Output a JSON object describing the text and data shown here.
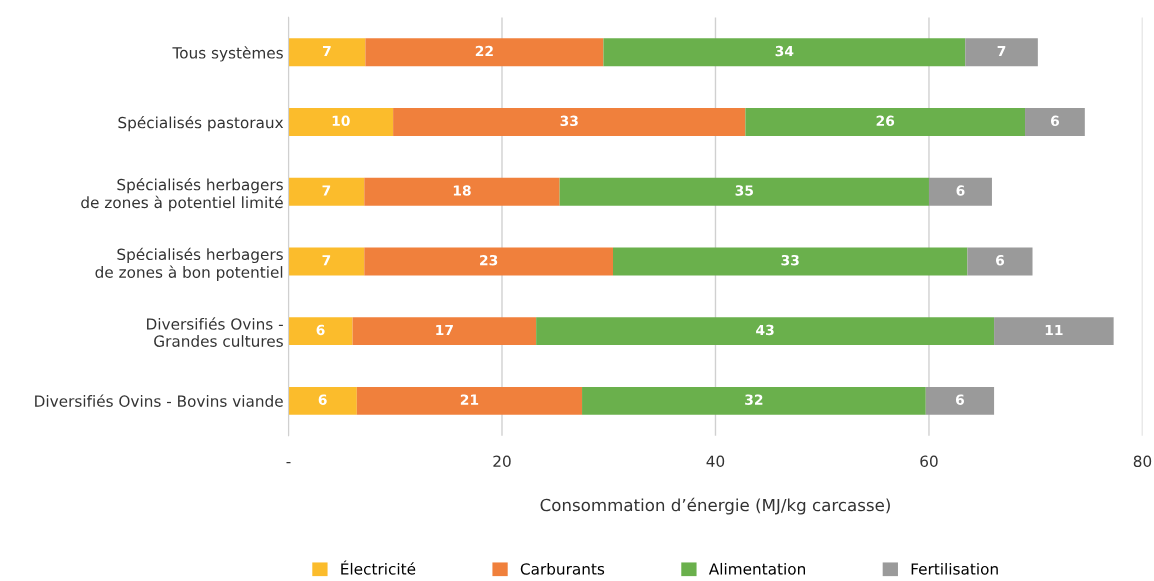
{
  "chart_data": {
    "type": "bar",
    "orientation": "horizontal",
    "stacked": true,
    "categories": [
      "Tous systèmes",
      "Spécialisés pastoraux",
      "Spécialisés herbagers\nde zones à potentiel limité",
      "Spécialisés herbagers\nde zones à bon potentiel",
      "Diversifiés Ovins -\nGrandes cultures",
      "Diversifiés Ovins - Bovins viande"
    ],
    "series": [
      {
        "name": "Électricité",
        "color": "#fbbc2c",
        "values": [
          7.2,
          9.8,
          7.1,
          7.1,
          6.0,
          6.4
        ],
        "value_labels": [
          "7",
          "10",
          "7",
          "7",
          "6",
          "6"
        ]
      },
      {
        "name": "Carburants",
        "color": "#f0803c",
        "values": [
          22.3,
          33.0,
          18.3,
          23.3,
          17.2,
          21.1
        ],
        "value_labels": [
          "22",
          "33",
          "18",
          "23",
          "17",
          "21"
        ]
      },
      {
        "name": "Alimentation",
        "color": "#6ab04c",
        "values": [
          33.9,
          26.2,
          34.6,
          33.2,
          42.9,
          32.2
        ],
        "value_labels": [
          "34",
          "26",
          "35",
          "33",
          "43",
          "32"
        ]
      },
      {
        "name": "Fertilisation",
        "color": "#9a9a9a",
        "values": [
          6.8,
          5.6,
          5.9,
          6.1,
          11.2,
          6.4
        ],
        "value_labels": [
          "7",
          "6",
          "6",
          "6",
          "11",
          "6"
        ]
      }
    ],
    "xlabel": "Consommation d’énergie (MJ/kg carcasse)",
    "xlim": [
      0,
      80
    ],
    "xticks": [
      {
        "value": 0,
        "label": "-"
      },
      20,
      40,
      60,
      80
    ],
    "grid": "x",
    "legend": "bottom"
  }
}
